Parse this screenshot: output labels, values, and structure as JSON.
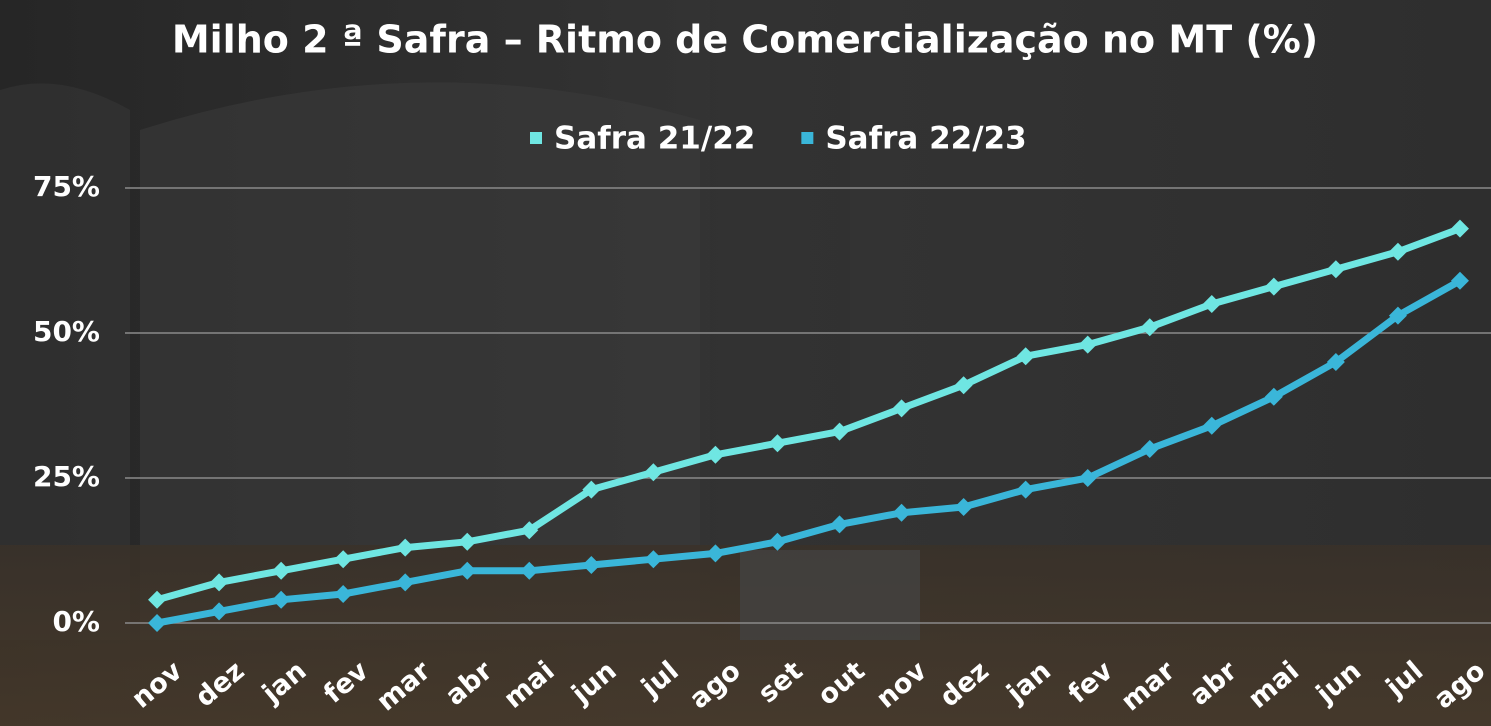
{
  "chart_data": {
    "type": "line",
    "title": "Milho 2 ª Safra – Ritmo de Comercialização no MT (%)",
    "categories": [
      "nov",
      "dez",
      "jan",
      "fev",
      "mar",
      "abr",
      "mai",
      "jun",
      "jul",
      "ago",
      "set",
      "out",
      "nov",
      "dez",
      "jan",
      "fev",
      "mar",
      "abr",
      "mai",
      "jun",
      "jul",
      "ago"
    ],
    "series": [
      {
        "name": "Safra 21/22",
        "color": "#6fe6e2",
        "values": [
          4,
          7,
          9,
          11,
          13,
          14,
          16,
          23,
          26,
          29,
          31,
          33,
          37,
          41,
          46,
          48,
          51,
          55,
          58,
          61,
          64,
          68
        ]
      },
      {
        "name": "Safra 22/23",
        "color": "#3ab6d9",
        "values": [
          0,
          2,
          4,
          5,
          7,
          9,
          9,
          10,
          11,
          12,
          14,
          17,
          19,
          20,
          23,
          25,
          30,
          34,
          39,
          45,
          53,
          59
        ]
      }
    ],
    "ylim": [
      0,
      75
    ],
    "yticks": [
      {
        "value": 0,
        "label": "0%"
      },
      {
        "value": 25,
        "label": "25%"
      },
      {
        "value": 50,
        "label": "50%"
      },
      {
        "value": 75,
        "label": "75%"
      }
    ],
    "grid": true,
    "legend": "top"
  }
}
